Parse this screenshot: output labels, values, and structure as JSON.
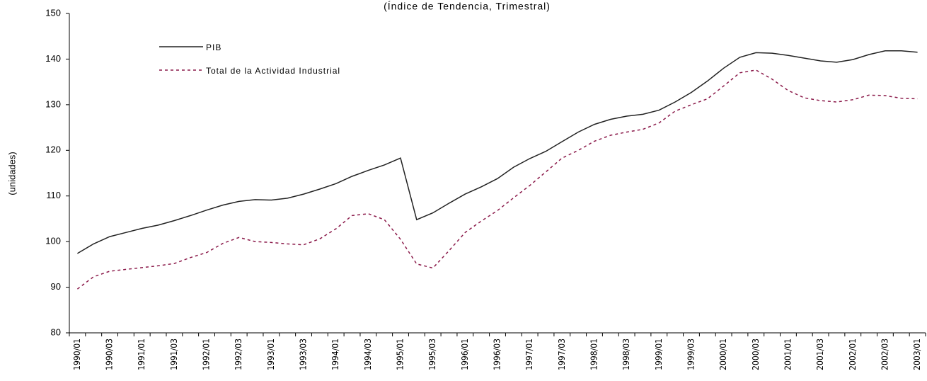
{
  "chart_data": {
    "type": "line",
    "title": "(Índice de Tendencia, Trimestral)",
    "y_label": "(unidades)",
    "categories": [
      "1990/01",
      null,
      "1990/03",
      null,
      "1991/01",
      null,
      "1991/03",
      null,
      "1992/01",
      null,
      "1992/03",
      null,
      "1993/01",
      null,
      "1993/03",
      null,
      "1994/01",
      null,
      "1994/03",
      null,
      "1995/01",
      null,
      "1995/03",
      null,
      "1996/01",
      null,
      "1996/03",
      null,
      "1997/01",
      null,
      "1997/03",
      null,
      "1998/01",
      null,
      "1998/03",
      null,
      "1999/01",
      null,
      "1999/03",
      null,
      "2000/01",
      null,
      "2000/03",
      null,
      "2001/01",
      null,
      "2001/03",
      null,
      "2002/01",
      null,
      "2002/03",
      null,
      "2003/01"
    ],
    "series": [
      {
        "name": "PIB",
        "color": "#222222",
        "dash": false,
        "values": [
          97.4,
          99.5,
          101.1,
          102,
          102.9,
          103.6,
          104.6,
          105.7,
          106.9,
          108,
          108.8,
          109.2,
          109.1,
          109.5,
          110.4,
          111.5,
          112.7,
          114.3,
          115.6,
          116.8,
          118.3,
          104.8,
          106.3,
          108.4,
          110.4,
          112,
          113.8,
          116.3,
          118.2,
          119.8,
          121.9,
          124,
          125.7,
          126.8,
          127.5,
          127.9,
          128.8,
          130.6,
          132.7,
          135.2,
          138,
          140.4,
          141.4,
          141.3,
          140.8,
          140.2,
          139.6,
          139.3,
          139.9,
          141,
          141.8,
          141.8,
          141.5
        ]
      },
      {
        "name": "Total de la Actividad Industrial",
        "color": "#8b1a4a",
        "dash": true,
        "values": [
          89.6,
          92.3,
          93.5,
          93.9,
          94.3,
          94.7,
          95.2,
          96.5,
          97.6,
          99.6,
          100.9,
          100,
          99.8,
          99.5,
          99.3,
          100.6,
          102.8,
          105.7,
          106.1,
          104.8,
          100.5,
          95.1,
          94.2,
          98,
          102,
          104.5,
          106.8,
          109.6,
          112.3,
          115.3,
          118.3,
          120,
          122,
          123.3,
          124,
          124.6,
          126,
          128.6,
          130,
          131.3,
          134.1,
          137,
          137.6,
          135.6,
          133.1,
          131.5,
          130.9,
          130.6,
          131.1,
          132.1,
          132,
          131.4,
          131.3
        ]
      }
    ],
    "ylim": [
      80,
      150
    ],
    "yticks": [
      80,
      90,
      100,
      110,
      120,
      130,
      140,
      150
    ],
    "legend": "top-left",
    "grid": false
  }
}
